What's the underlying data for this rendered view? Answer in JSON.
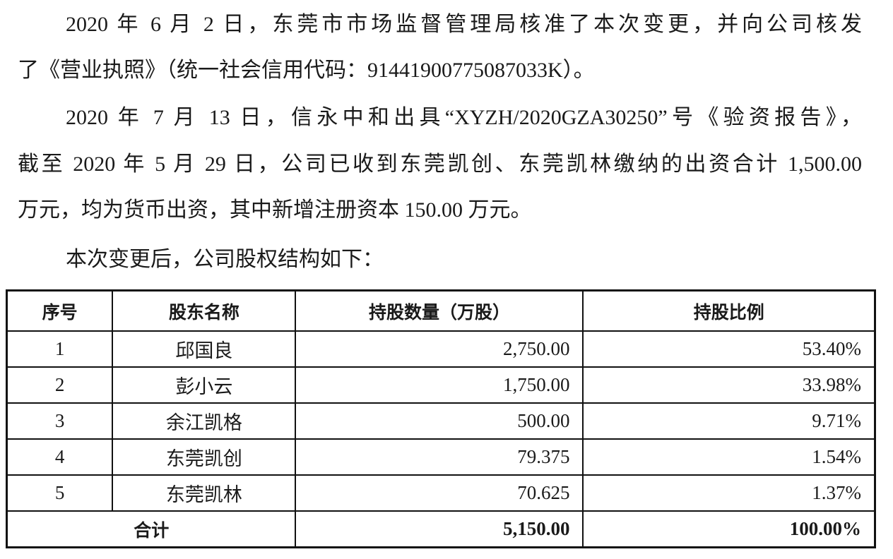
{
  "paragraphs": [
    {
      "lines": [
        "2020 年 6 月 2 日，东莞市市场监督管理局核准了本次变更，并向公司核发",
        "了《营业执照》（统一社会信用代码：91441900775087033K）。"
      ]
    },
    {
      "lines": [
        "2020 年 7 月 13 日，信永中和出具“XYZH/2020GZA30250”号《验资报告》，",
        "截至 2020 年 5 月 29 日，公司已收到东莞凯创、东莞凯林缴纳的出资合计 1,500.00",
        "万元，均为货币出资，其中新增注册资本 150.00 万元。"
      ]
    },
    {
      "lines": [
        "本次变更后，公司股权结构如下："
      ]
    }
  ],
  "table": {
    "headers": [
      "序号",
      "股东名称",
      "持股数量（万股）",
      "持股比例"
    ],
    "rows": [
      [
        "1",
        "邱国良",
        "2,750.00",
        "53.40%"
      ],
      [
        "2",
        "彭小云",
        "1,750.00",
        "33.98%"
      ],
      [
        "3",
        "余江凯格",
        "500.00",
        "9.71%"
      ],
      [
        "4",
        "东莞凯创",
        "79.375",
        "1.54%"
      ],
      [
        "5",
        "东莞凯林",
        "70.625",
        "1.37%"
      ]
    ],
    "total": {
      "label": "合计",
      "shares": "5,150.00",
      "ratio": "100.00%"
    }
  }
}
